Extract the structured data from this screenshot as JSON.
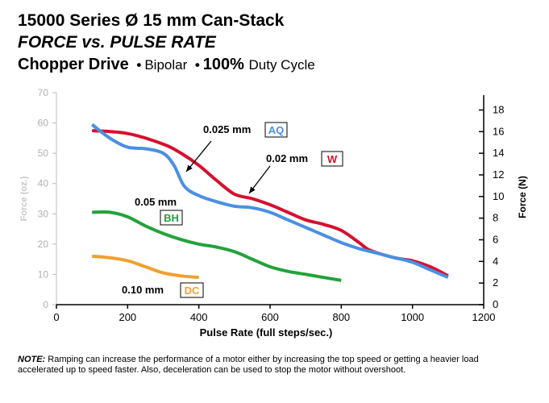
{
  "header": {
    "title_line1": "15000 Series Ø 15 mm  Can-Stack",
    "title_line2": "FORCE vs. PULSE RATE",
    "title_line3_bold": "Chopper Drive",
    "title_line3_sep1": "•",
    "title_line3_mid": "Bipolar",
    "title_line3_sep2": "•",
    "title_line3_bold2": "100%",
    "title_line3_tail": "Duty Cycle"
  },
  "note": {
    "lead": "NOTE:",
    "text": "Ramping can increase the performance of a motor either by increasing the top speed or getting a heavier load accelerated up to speed faster.  Also, deceleration can be used to stop the motor without overshoot."
  },
  "chart_data": {
    "type": "line",
    "xlabel": "Pulse Rate (full steps/sec.)",
    "ylabel": "Force (oz.)",
    "ylabel_right": "Force (N)",
    "xlim": [
      0,
      1200
    ],
    "ylim": [
      0,
      70
    ],
    "ylim_right": [
      0,
      19.6
    ],
    "x_ticks": [
      0,
      200,
      400,
      600,
      800,
      1000,
      1200
    ],
    "y_ticks": [
      0,
      10,
      20,
      30,
      40,
      50,
      60,
      70
    ],
    "y_ticks_right": [
      0,
      2,
      4,
      6,
      8,
      10,
      12,
      14,
      16,
      18
    ],
    "grid": false,
    "series": [
      {
        "name": "0.025 mm",
        "tag": "AQ",
        "color": "#4a90e2",
        "x": [
          100,
          150,
          200,
          250,
          300,
          330,
          360,
          400,
          450,
          500,
          550,
          600,
          650,
          700,
          750,
          800,
          850,
          900,
          950,
          1000,
          1050,
          1100
        ],
        "y": [
          59.5,
          55,
          52,
          51.5,
          50,
          46,
          39,
          36,
          34,
          32.5,
          32,
          30.5,
          28,
          25.5,
          23,
          20.5,
          18.5,
          17,
          15.5,
          14,
          11.5,
          9
        ]
      },
      {
        "name": "0.02 mm",
        "tag": "W",
        "color": "#d6102f",
        "x": [
          100,
          200,
          300,
          350,
          400,
          450,
          500,
          550,
          600,
          650,
          700,
          750,
          800,
          850,
          880,
          950,
          1000,
          1050,
          1100
        ],
        "y": [
          57.5,
          56.5,
          53,
          50,
          46,
          41,
          36.5,
          35,
          33,
          30.5,
          28,
          26.5,
          24.5,
          20.5,
          18,
          15.5,
          14.5,
          12.5,
          9.5
        ]
      },
      {
        "name": "0.05 mm",
        "tag": "BH",
        "color": "#23a23a",
        "x": [
          100,
          150,
          200,
          250,
          300,
          350,
          400,
          450,
          500,
          550,
          600,
          650,
          700,
          750,
          800
        ],
        "y": [
          30.5,
          30.5,
          29,
          26,
          23.5,
          21.5,
          20,
          19,
          17.5,
          15,
          12.5,
          11,
          10,
          9,
          8
        ]
      },
      {
        "name": "0.10 mm",
        "tag": "DC",
        "color": "#f0a030",
        "x": [
          100,
          150,
          200,
          250,
          300,
          350,
          400
        ],
        "y": [
          16,
          15.5,
          14.5,
          12.5,
          10.5,
          9.5,
          9
        ]
      }
    ]
  }
}
